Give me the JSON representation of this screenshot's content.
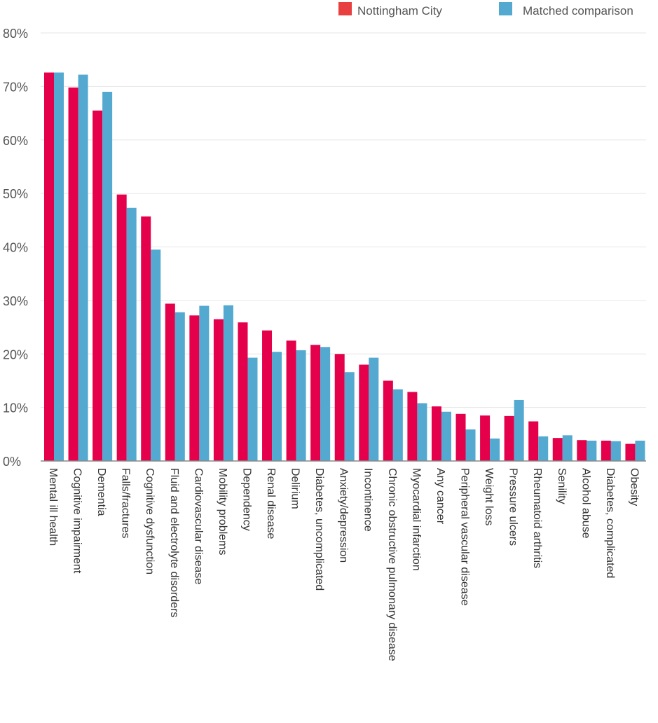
{
  "chart_data": {
    "type": "bar",
    "title": "",
    "xlabel": "",
    "ylabel": "",
    "ylim": [
      0,
      80
    ],
    "yticks": [
      0,
      10,
      20,
      30,
      40,
      50,
      60,
      70,
      80
    ],
    "ytick_labels": [
      "0%",
      "10%",
      "20%",
      "30%",
      "40%",
      "50%",
      "60%",
      "70%",
      "80%"
    ],
    "grid": true,
    "legend_position": "top-right",
    "categories": [
      "Mental ill health",
      "Cognitive impairment",
      "Dementia",
      "Falls/fractures",
      "Cognitive dysfunction",
      "Fluid and electrolyte disorders",
      "Cardiovascular disease",
      "Mobility problems",
      "Dependency",
      "Renal disease",
      "Delirium",
      "Diabetes, uncomplicated",
      "Anxiety/depression",
      "Incontinence",
      "Chronic obstructive pulmonary disease",
      "Myocardial infarction",
      "Any cancer",
      "Peripheral vascular disease",
      "Weight loss",
      "Pressure ulcers",
      "Rheumatoid arthritis",
      "Senility",
      "Alcohol abuse",
      "Diabetes, complicated",
      "Obesity"
    ],
    "series": [
      {
        "name": "Nottingham City",
        "color": "#e4004a",
        "legend_color": "#e84040",
        "values": [
          72.6,
          69.8,
          65.5,
          49.8,
          45.7,
          29.4,
          27.2,
          26.5,
          25.9,
          24.4,
          22.5,
          21.7,
          20.0,
          18.0,
          15.0,
          12.9,
          10.2,
          8.8,
          8.5,
          8.4,
          7.4,
          4.3,
          3.9,
          3.8,
          3.2
        ]
      },
      {
        "name": "Matched comparison",
        "color": "#53a9d0",
        "legend_color": "#53a9d0",
        "values": [
          72.6,
          72.2,
          69.0,
          47.3,
          39.5,
          27.8,
          29.0,
          29.1,
          19.3,
          20.4,
          20.7,
          21.3,
          16.6,
          19.3,
          13.4,
          10.8,
          9.2,
          5.9,
          4.2,
          11.4,
          4.6,
          4.8,
          3.8,
          3.7,
          3.8
        ]
      }
    ]
  }
}
